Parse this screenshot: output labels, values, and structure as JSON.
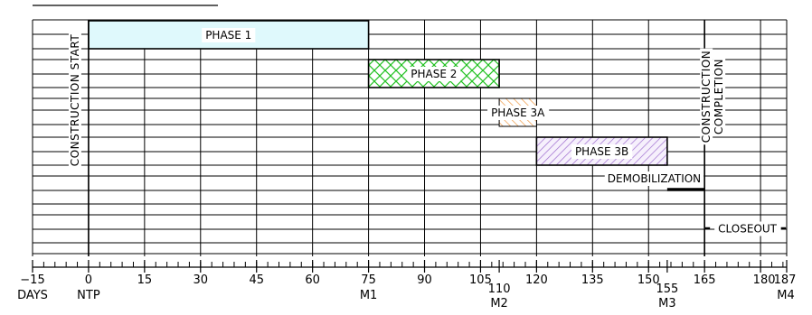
{
  "chart_data": {
    "type": "gantt",
    "x_unit": "DAYS",
    "x_range": [
      -15,
      187
    ],
    "x_ticks": [
      {
        "value": -15,
        "label": "−15"
      },
      {
        "value": 0,
        "label": "0"
      },
      {
        "value": 15,
        "label": "15"
      },
      {
        "value": 30,
        "label": "30"
      },
      {
        "value": 45,
        "label": "45"
      },
      {
        "value": 60,
        "label": "60"
      },
      {
        "value": 75,
        "label": "75"
      },
      {
        "value": 90,
        "label": "90"
      },
      {
        "value": 105,
        "label": "105"
      },
      {
        "value": 110,
        "label": "110"
      },
      {
        "value": 120,
        "label": "120"
      },
      {
        "value": 135,
        "label": "135"
      },
      {
        "value": 150,
        "label": "150"
      },
      {
        "value": 155,
        "label": "155"
      },
      {
        "value": 165,
        "label": "165"
      },
      {
        "value": 180,
        "label": "180"
      },
      {
        "value": 187,
        "label": "187"
      }
    ],
    "axis_unit_label": "DAYS",
    "milestones": [
      {
        "value": 0,
        "label": "NTP"
      },
      {
        "value": 75,
        "label": "M1"
      },
      {
        "value": 110,
        "label": "M2"
      },
      {
        "value": 155,
        "label": "M3"
      },
      {
        "value": 187,
        "label": "M4"
      }
    ],
    "tasks": [
      {
        "name": "PHASE 1",
        "start": 0,
        "end": 75,
        "style": "fill",
        "color": "#dff9fc"
      },
      {
        "name": "PHASE 2",
        "start": 75,
        "end": 110,
        "style": "crosshatch",
        "color": "#33cc33"
      },
      {
        "name": "PHASE 3A",
        "start": 110,
        "end": 120,
        "style": "hatch-orange",
        "color": "#f0a050"
      },
      {
        "name": "PHASE 3B",
        "start": 120,
        "end": 155,
        "style": "hatch-purple",
        "color": "#a070d0"
      },
      {
        "name": "DEMOBILIZATION",
        "start": 155,
        "end": 165,
        "style": "line",
        "color": "#000000"
      },
      {
        "name": "CLOSEOUT",
        "start": 165,
        "end": 187,
        "style": "dashed",
        "color": "#000000"
      }
    ],
    "vertical_markers": [
      {
        "value": 0,
        "label": "CONSTRUCTION START"
      },
      {
        "value": 165,
        "label_lines": [
          "CONSTRUCTION",
          "COMPLETION"
        ]
      }
    ],
    "grid": true
  }
}
